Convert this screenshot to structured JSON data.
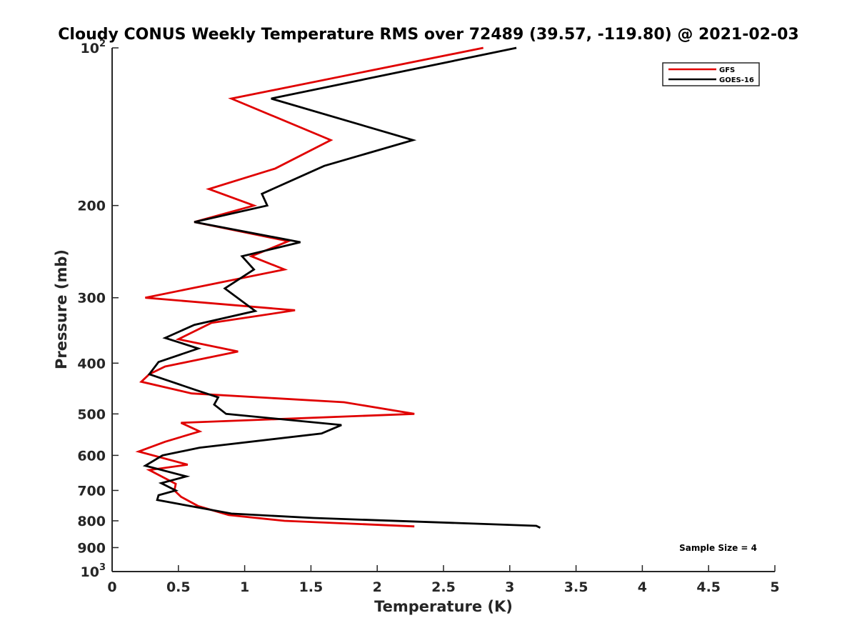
{
  "chart_data": {
    "type": "line",
    "title": "Cloudy CONUS Weekly Temperature RMS over 72489 (39.57, -119.80) @ 2021-02-03",
    "xlabel": "Temperature (K)",
    "ylabel": "Pressure (mb)",
    "xlim": [
      0,
      5
    ],
    "ylim": [
      100,
      1000
    ],
    "y_scale": "log",
    "y_reversed": true,
    "grid": false,
    "legend_position": "top-right",
    "x_ticks": [
      "0",
      "0.5",
      "1",
      "1.5",
      "2",
      "2.5",
      "3",
      "3.5",
      "4",
      "4.5",
      "5"
    ],
    "y_ticks": [
      {
        "value": 100,
        "base": "10",
        "exp": "2"
      },
      {
        "value": 200,
        "label": "200"
      },
      {
        "value": 300,
        "label": "300"
      },
      {
        "value": 400,
        "label": "400"
      },
      {
        "value": 500,
        "label": "500"
      },
      {
        "value": 600,
        "label": "600"
      },
      {
        "value": 700,
        "label": "700"
      },
      {
        "value": 800,
        "label": "800"
      },
      {
        "value": 900,
        "label": "900"
      },
      {
        "value": 1000,
        "base": "10",
        "exp": "3"
      }
    ],
    "series": [
      {
        "name": "GFS",
        "color": "#e00000",
        "points": [
          [
            2.8,
            100
          ],
          [
            0.9,
            125
          ],
          [
            1.65,
            150
          ],
          [
            1.23,
            170
          ],
          [
            0.73,
            186
          ],
          [
            1.07,
            200
          ],
          [
            0.62,
            215
          ],
          [
            1.33,
            234
          ],
          [
            1.05,
            250
          ],
          [
            1.3,
            265
          ],
          [
            0.25,
            300
          ],
          [
            1.38,
            317
          ],
          [
            0.75,
            335
          ],
          [
            0.5,
            360
          ],
          [
            0.95,
            380
          ],
          [
            0.4,
            406
          ],
          [
            0.28,
            420
          ],
          [
            0.22,
            434
          ],
          [
            0.6,
            457
          ],
          [
            1.75,
            475
          ],
          [
            2.28,
            500
          ],
          [
            0.52,
            520
          ],
          [
            0.66,
            540
          ],
          [
            0.4,
            565
          ],
          [
            0.2,
            590
          ],
          [
            0.57,
            625
          ],
          [
            0.28,
            640
          ],
          [
            0.48,
            680
          ],
          [
            0.47,
            700
          ],
          [
            0.52,
            720
          ],
          [
            0.65,
            750
          ],
          [
            0.88,
            780
          ],
          [
            1.3,
            800
          ],
          [
            2.28,
            820
          ]
        ]
      },
      {
        "name": "GOES-16",
        "color": "#000000",
        "points": [
          [
            3.05,
            100
          ],
          [
            1.2,
            125
          ],
          [
            2.27,
            150
          ],
          [
            1.6,
            168
          ],
          [
            1.13,
            190
          ],
          [
            1.17,
            200
          ],
          [
            0.62,
            215
          ],
          [
            1.42,
            235
          ],
          [
            0.98,
            250
          ],
          [
            1.07,
            265
          ],
          [
            0.85,
            288
          ],
          [
            1.08,
            318
          ],
          [
            0.62,
            338
          ],
          [
            0.4,
            358
          ],
          [
            0.65,
            375
          ],
          [
            0.35,
            398
          ],
          [
            0.28,
            420
          ],
          [
            0.63,
            450
          ],
          [
            0.8,
            465
          ],
          [
            0.77,
            480
          ],
          [
            0.86,
            500
          ],
          [
            1.73,
            525
          ],
          [
            1.58,
            545
          ],
          [
            0.66,
            580
          ],
          [
            0.38,
            600
          ],
          [
            0.25,
            628
          ],
          [
            0.56,
            658
          ],
          [
            0.37,
            678
          ],
          [
            0.48,
            700
          ],
          [
            0.35,
            715
          ],
          [
            0.34,
            730
          ],
          [
            0.68,
            757
          ],
          [
            0.9,
            775
          ],
          [
            1.52,
            790
          ],
          [
            3.2,
            818
          ],
          [
            3.23,
            825
          ]
        ]
      }
    ],
    "legend": [
      {
        "label": "GFS",
        "color": "#e00000"
      },
      {
        "label": "GOES-16",
        "color": "#000000"
      }
    ],
    "annotation": "Sample Size = 4"
  }
}
